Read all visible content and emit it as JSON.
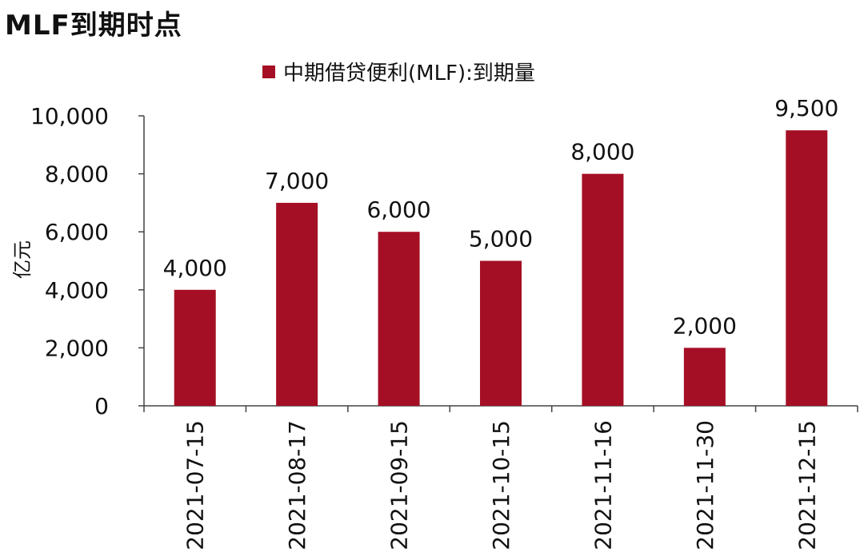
{
  "title": "MLF到期时点",
  "chart_data": {
    "type": "bar",
    "title": "MLF到期时点",
    "categories": [
      "2021-07-15",
      "2021-08-17",
      "2021-09-15",
      "2021-10-15",
      "2021-11-16",
      "2021-11-30",
      "2021-12-15"
    ],
    "series": [
      {
        "name": "中期借贷便利(MLF):到期量",
        "values": [
          4000,
          7000,
          6000,
          5000,
          8000,
          2000,
          9500
        ],
        "data_labels": [
          "4,000",
          "7,000",
          "6,000",
          "5,000",
          "8,000",
          "2,000",
          "9,500"
        ],
        "color": "#A50F25"
      }
    ],
    "xlabel": "",
    "ylabel": "亿元",
    "ylim": [
      0,
      10000
    ],
    "yticks": [
      0,
      2000,
      4000,
      6000,
      8000,
      10000
    ],
    "ytick_labels": [
      "0",
      "2,000",
      "4,000",
      "6,000",
      "8,000",
      "10,000"
    ],
    "grid": false,
    "legend_position": "top-center"
  }
}
